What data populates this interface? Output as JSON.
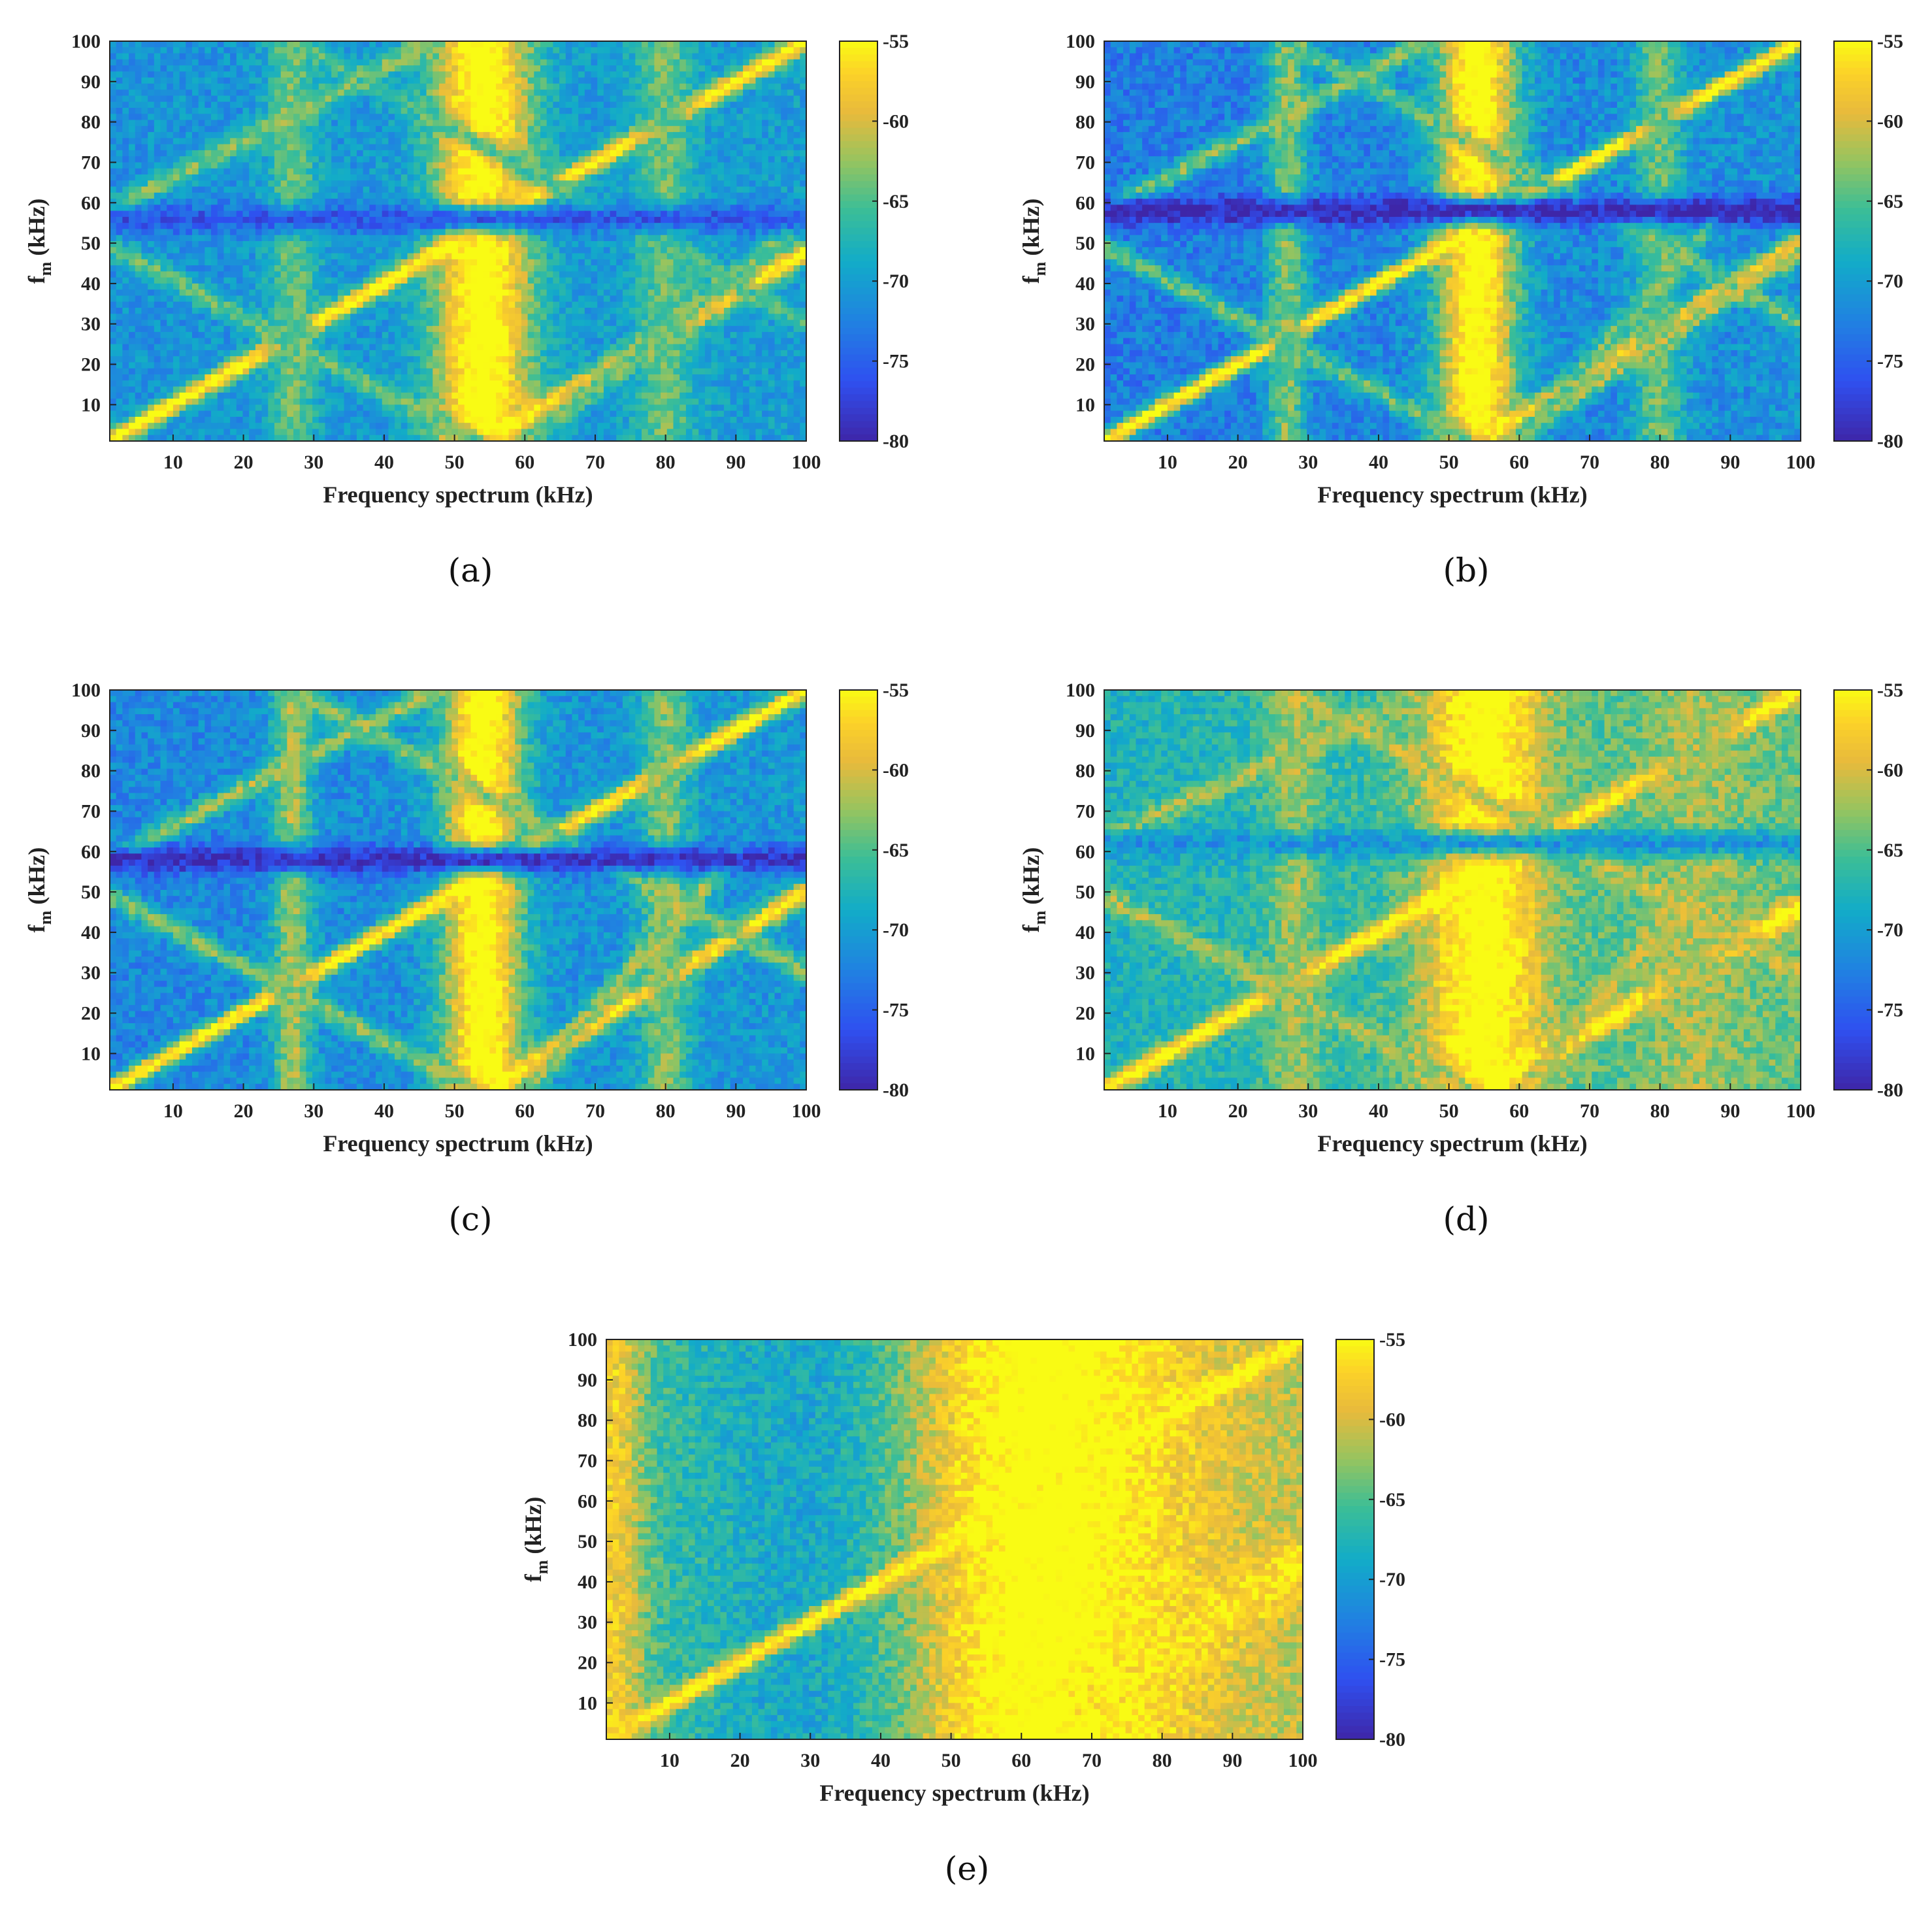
{
  "figure": {
    "panels_note": "five heatmap panels",
    "chart_data": [
      {
        "id": "a",
        "caption": "(a)",
        "type": "heatmap",
        "xlabel": "Frequency spectrum (kHz)",
        "ylabel_main": "f",
        "ylabel_sub": "m",
        "ylabel_unit": " (kHz)",
        "xlim": [
          1,
          100
        ],
        "ylim": [
          1,
          100
        ],
        "xticks": [
          "10",
          "20",
          "30",
          "40",
          "50",
          "60",
          "70",
          "80",
          "90",
          "100"
        ],
        "yticks": [
          "10",
          "20",
          "30",
          "40",
          "50",
          "60",
          "70",
          "80",
          "90",
          "100"
        ],
        "colorbar": {
          "clim": [
            -80,
            -55
          ],
          "ticks": [
            "-55",
            "-60",
            "-65",
            "-70",
            "-75",
            "-80"
          ]
        },
        "background_level": -71,
        "gradient": 1.0,
        "noise": 2.5,
        "features": [
          {
            "kind": "line",
            "from": [
              1,
              1
            ],
            "to": [
              100,
              100
            ],
            "width": 1.4,
            "level": -54
          },
          {
            "kind": "line",
            "from": [
              55,
              1
            ],
            "to": [
              100,
              48
            ],
            "width": 1.6,
            "level": -55
          },
          {
            "kind": "vband",
            "center": 54,
            "width": 5,
            "level": -53
          },
          {
            "kind": "vband",
            "center": 27,
            "width": 2.5,
            "level": -64
          },
          {
            "kind": "vband",
            "center": 80,
            "width": 3,
            "level": -64
          },
          {
            "kind": "line",
            "from": [
              1,
              58
            ],
            "to": [
              47,
              100
            ],
            "width": 1.6,
            "level": -63
          },
          {
            "kind": "line",
            "from": [
              1,
              49
            ],
            "to": [
              53,
              1
            ],
            "width": 1.6,
            "level": -64
          },
          {
            "kind": "line",
            "from": [
              27,
              100
            ],
            "to": [
              100,
              30
            ],
            "width": 1.6,
            "level": -65
          },
          {
            "kind": "line",
            "from": [
              60,
              1
            ],
            "to": [
              100,
              56
            ],
            "width": 1.4,
            "level": -64
          },
          {
            "kind": "hband",
            "center": 56,
            "width": 2.5,
            "level": -76
          }
        ]
      },
      {
        "id": "b",
        "caption": "(b)",
        "type": "heatmap",
        "xlabel": "Frequency spectrum (kHz)",
        "ylabel_main": "f",
        "ylabel_sub": "m",
        "ylabel_unit": " (kHz)",
        "xlim": [
          1,
          100
        ],
        "ylim": [
          1,
          100
        ],
        "xticks": [
          "10",
          "20",
          "30",
          "40",
          "50",
          "60",
          "70",
          "80",
          "90",
          "100"
        ],
        "yticks": [
          "10",
          "20",
          "30",
          "40",
          "50",
          "60",
          "70",
          "80",
          "90",
          "100"
        ],
        "colorbar": {
          "clim": [
            -80,
            -55
          ],
          "ticks": [
            "-55",
            "-60",
            "-65",
            "-70",
            "-75",
            "-80"
          ]
        },
        "background_level": -73,
        "gradient": 2.0,
        "noise": 2.8,
        "features": [
          {
            "kind": "line",
            "from": [
              1,
              1
            ],
            "to": [
              100,
              100
            ],
            "width": 1.3,
            "level": -54
          },
          {
            "kind": "line",
            "from": [
              55,
              1
            ],
            "to": [
              100,
              50
            ],
            "width": 1.5,
            "level": -55
          },
          {
            "kind": "vband",
            "center": 54,
            "width": 4,
            "level": -53
          },
          {
            "kind": "vband",
            "center": 27,
            "width": 2,
            "level": -63
          },
          {
            "kind": "vband",
            "center": 80,
            "width": 2.5,
            "level": -64
          },
          {
            "kind": "line",
            "from": [
              1,
              58
            ],
            "to": [
              47,
              100
            ],
            "width": 1.5,
            "level": -63
          },
          {
            "kind": "line",
            "from": [
              1,
              49
            ],
            "to": [
              53,
              1
            ],
            "width": 1.5,
            "level": -64
          },
          {
            "kind": "line",
            "from": [
              27,
              100
            ],
            "to": [
              100,
              30
            ],
            "width": 1.5,
            "level": -64
          },
          {
            "kind": "line",
            "from": [
              58,
              1
            ],
            "to": [
              100,
              48
            ],
            "width": 1.3,
            "level": -62
          },
          {
            "kind": "line",
            "from": [
              60,
              1
            ],
            "to": [
              90,
              60
            ],
            "width": 1.2,
            "level": -64
          },
          {
            "kind": "hband",
            "center": 58,
            "width": 2.5,
            "level": -80
          }
        ]
      },
      {
        "id": "c",
        "caption": "(c)",
        "type": "heatmap",
        "xlabel": "Frequency spectrum (kHz)",
        "ylabel_main": "f",
        "ylabel_sub": "m",
        "ylabel_unit": " (kHz)",
        "xlim": [
          1,
          100
        ],
        "ylim": [
          1,
          100
        ],
        "xticks": [
          "10",
          "20",
          "30",
          "40",
          "50",
          "60",
          "70",
          "80",
          "90",
          "100"
        ],
        "yticks": [
          "10",
          "20",
          "30",
          "40",
          "50",
          "60",
          "70",
          "80",
          "90",
          "100"
        ],
        "colorbar": {
          "clim": [
            -80,
            -55
          ],
          "ticks": [
            "-55",
            "-60",
            "-65",
            "-70",
            "-75",
            "-80"
          ]
        },
        "background_level": -72,
        "gradient": 1.5,
        "noise": 2.6,
        "features": [
          {
            "kind": "line",
            "from": [
              1,
              1
            ],
            "to": [
              100,
              100
            ],
            "width": 1.3,
            "level": -54
          },
          {
            "kind": "line",
            "from": [
              55,
              1
            ],
            "to": [
              100,
              50
            ],
            "width": 1.5,
            "level": -55
          },
          {
            "kind": "vband",
            "center": 54,
            "width": 4,
            "level": -53
          },
          {
            "kind": "vband",
            "center": 27,
            "width": 2,
            "level": -62
          },
          {
            "kind": "vband",
            "center": 80,
            "width": 2.5,
            "level": -63
          },
          {
            "kind": "line",
            "from": [
              1,
              58
            ],
            "to": [
              47,
              100
            ],
            "width": 1.5,
            "level": -62
          },
          {
            "kind": "line",
            "from": [
              1,
              49
            ],
            "to": [
              53,
              1
            ],
            "width": 1.5,
            "level": -63
          },
          {
            "kind": "line",
            "from": [
              27,
              100
            ],
            "to": [
              100,
              30
            ],
            "width": 1.5,
            "level": -63
          },
          {
            "kind": "line",
            "from": [
              60,
              1
            ],
            "to": [
              90,
              60
            ],
            "width": 1.3,
            "level": -62
          },
          {
            "kind": "hband",
            "center": 58,
            "width": 2.5,
            "level": -79
          }
        ]
      },
      {
        "id": "d",
        "caption": "(d)",
        "type": "heatmap",
        "xlabel": "Frequency spectrum (kHz)",
        "ylabel_main": "f",
        "ylabel_sub": "m",
        "ylabel_unit": " (kHz)",
        "xlim": [
          1,
          100
        ],
        "ylim": [
          1,
          100
        ],
        "xticks": [
          "10",
          "20",
          "30",
          "40",
          "50",
          "60",
          "70",
          "80",
          "90",
          "100"
        ],
        "yticks": [
          "10",
          "20",
          "30",
          "40",
          "50",
          "60",
          "70",
          "80",
          "90",
          "100"
        ],
        "colorbar": {
          "clim": [
            -80,
            -55
          ],
          "ticks": [
            "-55",
            "-60",
            "-65",
            "-70",
            "-75",
            "-80"
          ]
        },
        "background_level": -68,
        "gradient": 4.0,
        "noise": 2.6,
        "features": [
          {
            "kind": "line",
            "from": [
              1,
              1
            ],
            "to": [
              100,
              100
            ],
            "width": 1.4,
            "level": -54
          },
          {
            "kind": "line",
            "from": [
              55,
              1
            ],
            "to": [
              100,
              46
            ],
            "width": 1.8,
            "level": -54
          },
          {
            "kind": "vband",
            "center": 55,
            "width": 6,
            "level": -53
          },
          {
            "kind": "vband",
            "center": 28,
            "width": 2.5,
            "level": -62
          },
          {
            "kind": "vband",
            "center": 85,
            "width": 5,
            "level": -62
          },
          {
            "kind": "line",
            "from": [
              1,
              63
            ],
            "to": [
              47,
              100
            ],
            "width": 1.6,
            "level": -62
          },
          {
            "kind": "line",
            "from": [
              1,
              49
            ],
            "to": [
              53,
              1
            ],
            "width": 1.6,
            "level": -62
          },
          {
            "kind": "line",
            "from": [
              27,
              100
            ],
            "to": [
              100,
              30
            ],
            "width": 1.6,
            "level": -61
          },
          {
            "kind": "line",
            "from": [
              60,
              1
            ],
            "to": [
              90,
              60
            ],
            "width": 1.3,
            "level": -61
          },
          {
            "kind": "hband",
            "center": 62,
            "width": 2.5,
            "level": -71
          }
        ]
      },
      {
        "id": "e",
        "caption": "(e)",
        "type": "heatmap",
        "xlabel": "Frequency spectrum (kHz)",
        "ylabel_main": "f",
        "ylabel_sub": "m",
        "ylabel_unit": " (kHz)",
        "xlim": [
          1,
          100
        ],
        "ylim": [
          1,
          100
        ],
        "xticks": [
          "10",
          "20",
          "30",
          "40",
          "50",
          "60",
          "70",
          "80",
          "90",
          "100"
        ],
        "yticks": [
          "10",
          "20",
          "30",
          "40",
          "50",
          "60",
          "70",
          "80",
          "90",
          "100"
        ],
        "colorbar": {
          "clim": [
            -80,
            -55
          ],
          "ticks": [
            "-55",
            "-60",
            "-65",
            "-70",
            "-75",
            "-80"
          ]
        },
        "background_level": -65,
        "gradient": 3.0,
        "noise": 2.6,
        "features": [
          {
            "kind": "vband",
            "center": 60,
            "width": 18,
            "level": -52
          },
          {
            "kind": "vband",
            "center": 28,
            "width": 14,
            "level": -69
          },
          {
            "kind": "line",
            "from": [
              1,
              1
            ],
            "to": [
              100,
              100
            ],
            "width": 1.4,
            "level": -54
          },
          {
            "kind": "line",
            "from": [
              70,
              10
            ],
            "to": [
              100,
              45
            ],
            "width": 4,
            "level": -56
          },
          {
            "kind": "vband",
            "center": 2,
            "width": 3,
            "level": -58
          }
        ]
      }
    ]
  }
}
